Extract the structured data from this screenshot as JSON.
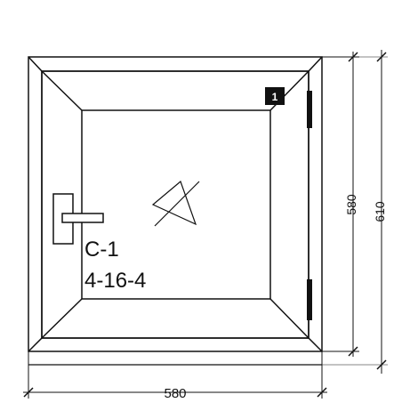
{
  "window": {
    "sash_number": "1",
    "mark": "C-1",
    "glazing": "4-16-4"
  },
  "dimensions": {
    "width": "580",
    "sash_height": "580",
    "height": "610"
  },
  "colors": {
    "line": "#111111",
    "background": "#ffffff"
  },
  "icons": {
    "handle": "window-handle-icon",
    "hinge": "hinge-icon",
    "opening": "tilt-symbol-icon"
  }
}
